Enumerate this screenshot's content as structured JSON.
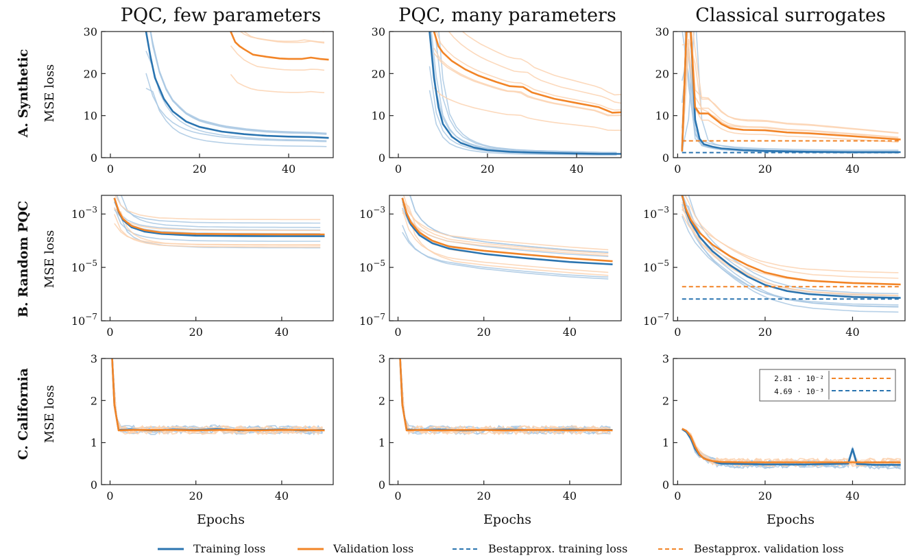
{
  "column_titles": [
    "PQC, few parameters",
    "PQC, many parameters",
    "Classical surrogates"
  ],
  "row_labels": [
    "A. Synthetic",
    "B. Random PQC",
    "C. California"
  ],
  "ylabel": "MSE loss",
  "xlabel": "Epochs",
  "legend": {
    "training": "Training loss",
    "validation": "Validation loss",
    "best_training": "Bestapprox. training loss",
    "best_validation": "Bestapprox. validation loss"
  },
  "inset_legend": {
    "val_label": "2.81 · 10⁻²",
    "train_label": "4.69 · 10⁻³"
  },
  "colors": {
    "training": "#2a74b0",
    "validation": "#f28426",
    "faint_training": "#a9c8e3",
    "faint_validation": "#fbd2b0"
  },
  "chart_data": [
    {
      "panel": "A1",
      "type": "line",
      "row": "A. Synthetic",
      "column": "PQC, few parameters",
      "ylabel": "MSE loss",
      "xlim": [
        -2,
        50
      ],
      "ylim": [
        0,
        30
      ],
      "yscale": "linear",
      "xticks": [
        0,
        20,
        40
      ],
      "yticks": [
        0,
        10,
        20,
        30
      ],
      "series": [
        {
          "name": "Training loss",
          "x": [
            8,
            9,
            10,
            12,
            14,
            17,
            20,
            25,
            30,
            35,
            40,
            45,
            49
          ],
          "y": [
            30,
            24,
            19,
            14,
            11,
            8.6,
            7.3,
            6.2,
            5.6,
            5.2,
            5.0,
            4.9,
            4.7
          ]
        },
        {
          "name": "Validation loss",
          "x": [
            27,
            28,
            29,
            30,
            32,
            35,
            38,
            40,
            43,
            45,
            47,
            49
          ],
          "y": [
            30,
            27.5,
            26.5,
            25.8,
            24.5,
            24.0,
            23.6,
            23.5,
            23.5,
            23.8,
            23.5,
            23.3
          ]
        }
      ]
    },
    {
      "panel": "A2",
      "type": "line",
      "row": "A. Synthetic",
      "column": "PQC, many parameters",
      "ylabel": "MSE loss",
      "xlim": [
        -2,
        50
      ],
      "ylim": [
        0,
        30
      ],
      "yscale": "linear",
      "xticks": [
        0,
        20,
        40
      ],
      "yticks": [
        0,
        10,
        20,
        30
      ],
      "series": [
        {
          "name": "Training loss",
          "x": [
            7,
            8,
            9,
            10,
            12,
            14,
            17,
            20,
            25,
            30,
            35,
            40,
            45,
            50
          ],
          "y": [
            30,
            19,
            12,
            8,
            5,
            3.5,
            2.4,
            1.8,
            1.4,
            1.2,
            1.1,
            1.0,
            0.9,
            0.9
          ]
        },
        {
          "name": "Validation loss",
          "x": [
            8,
            9,
            10,
            12,
            15,
            18,
            22,
            25,
            28,
            30,
            35,
            40,
            45,
            48,
            50
          ],
          "y": [
            30,
            26.5,
            25,
            23,
            21,
            19.5,
            18,
            17,
            16.8,
            15.5,
            14,
            13,
            12,
            10.7,
            10.8
          ]
        }
      ]
    },
    {
      "panel": "A3",
      "type": "line",
      "row": "A. Synthetic",
      "column": "Classical surrogates",
      "ylabel": "MSE loss",
      "xlim": [
        -1,
        52
      ],
      "ylim": [
        0,
        30
      ],
      "yscale": "linear",
      "xticks": [
        0,
        20,
        40
      ],
      "yticks": [
        0,
        10,
        20,
        30
      ],
      "series": [
        {
          "name": "Training loss",
          "x": [
            1,
            2,
            3,
            4,
            5,
            6,
            8,
            10,
            15,
            20,
            30,
            40,
            51
          ],
          "y": [
            1.5,
            30,
            30,
            9,
            4.5,
            3.2,
            2.6,
            2.2,
            1.8,
            1.6,
            1.4,
            1.3,
            1.3
          ]
        },
        {
          "name": "Validation loss",
          "x": [
            1,
            2,
            3,
            4,
            5,
            7,
            10,
            12,
            15,
            20,
            25,
            30,
            40,
            51
          ],
          "y": [
            1.5,
            30,
            30,
            12,
            10.5,
            10.5,
            8,
            7,
            6.6,
            6.5,
            6.0,
            5.8,
            5.1,
            4.3
          ]
        },
        {
          "name": "Bestapprox. training loss",
          "x": [
            1,
            51
          ],
          "y": [
            1.2,
            1.2
          ]
        },
        {
          "name": "Bestapprox. validation loss",
          "x": [
            1,
            51
          ],
          "y": [
            4.0,
            4.0
          ]
        }
      ]
    },
    {
      "panel": "B1",
      "type": "line",
      "row": "B. Random PQC",
      "column": "PQC, few parameters",
      "ylabel": "MSE loss",
      "xlim": [
        -2,
        52
      ],
      "ylim": [
        1e-07,
        0.005
      ],
      "yscale": "log",
      "xticks": [
        0,
        20,
        40
      ],
      "yticks": [
        1e-07,
        1e-05,
        0.001
      ],
      "ytick_labels": [
        "10⁻⁷",
        "10⁻⁵",
        "10⁻³"
      ],
      "series": [
        {
          "name": "Training loss",
          "x": [
            1,
            2,
            3,
            5,
            8,
            12,
            20,
            30,
            40,
            50
          ],
          "y": [
            0.004,
            0.0012,
            0.0006,
            0.00032,
            0.00022,
            0.00018,
            0.000155,
            0.00015,
            0.000148,
            0.000147
          ]
        },
        {
          "name": "Validation loss",
          "x": [
            1,
            2,
            3,
            5,
            8,
            12,
            20,
            30,
            40,
            50
          ],
          "y": [
            0.004,
            0.0013,
            0.00065,
            0.00036,
            0.00025,
            0.0002,
            0.00018,
            0.000175,
            0.000173,
            0.000172
          ]
        }
      ]
    },
    {
      "panel": "B2",
      "type": "line",
      "row": "B. Random PQC",
      "column": "PQC, many parameters",
      "ylabel": "MSE loss",
      "xlim": [
        -2,
        52
      ],
      "ylim": [
        1e-07,
        0.005
      ],
      "yscale": "log",
      "xticks": [
        0,
        20,
        40
      ],
      "yticks": [
        1e-07,
        1e-05,
        0.001
      ],
      "ytick_labels": [
        "10⁻⁷",
        "10⁻⁵",
        "10⁻³"
      ],
      "series": [
        {
          "name": "Training loss",
          "x": [
            1,
            2,
            3,
            5,
            8,
            12,
            20,
            30,
            40,
            50
          ],
          "y": [
            0.004,
            0.00095,
            0.0004,
            0.00016,
            8e-05,
            5e-05,
            3.2e-05,
            2.2e-05,
            1.6e-05,
            1.3e-05
          ]
        },
        {
          "name": "Validation loss",
          "x": [
            1,
            2,
            3,
            5,
            8,
            12,
            20,
            30,
            40,
            50
          ],
          "y": [
            0.004,
            0.0011,
            0.00048,
            0.0002,
            0.0001,
            6e-05,
            4.2e-05,
            3e-05,
            2.2e-05,
            1.7e-05
          ]
        }
      ]
    },
    {
      "panel": "B3",
      "type": "line",
      "row": "B. Random PQC",
      "column": "Classical surrogates",
      "ylabel": "MSE loss",
      "xlim": [
        -1,
        52
      ],
      "ylim": [
        1e-07,
        0.005
      ],
      "yscale": "log",
      "xticks": [
        0,
        20,
        40
      ],
      "yticks": [
        1e-07,
        1e-05,
        0.001
      ],
      "ytick_labels": [
        "10⁻⁷",
        "10⁻⁵",
        "10⁻³"
      ],
      "series": [
        {
          "name": "Training loss",
          "x": [
            1,
            2,
            3,
            5,
            8,
            12,
            16,
            20,
            25,
            30,
            40,
            51
          ],
          "y": [
            0.005,
            0.0012,
            0.0005,
            0.00014,
            4e-05,
            1.2e-05,
            4.5e-06,
            2.2e-06,
            1.3e-06,
            1e-06,
            7.8e-07,
            7.2e-07
          ]
        },
        {
          "name": "Validation loss",
          "x": [
            1,
            2,
            3,
            5,
            8,
            12,
            16,
            20,
            25,
            30,
            40,
            51
          ],
          "y": [
            0.005,
            0.0014,
            0.0006,
            0.0002,
            7e-05,
            2.6e-05,
            1.2e-05,
            6.5e-06,
            4.2e-06,
            3.2e-06,
            2.6e-06,
            2.3e-06
          ]
        },
        {
          "name": "Bestapprox. training loss",
          "x": [
            1,
            51
          ],
          "y": [
            6.5e-07,
            6.5e-07
          ]
        },
        {
          "name": "Bestapprox. validation loss",
          "x": [
            1,
            51
          ],
          "y": [
            1.9e-06,
            1.9e-06
          ]
        }
      ]
    },
    {
      "panel": "C1",
      "type": "line",
      "row": "C. California",
      "column": "PQC, few parameters",
      "ylabel": "MSE loss",
      "xlabel": "Epochs",
      "xlim": [
        -2,
        52
      ],
      "ylim": [
        0,
        3
      ],
      "yscale": "linear",
      "xticks": [
        0,
        20,
        40
      ],
      "yticks": [
        0,
        1,
        2,
        3
      ],
      "series": [
        {
          "name": "Training loss",
          "x": [
            0.5,
            1,
            2,
            5,
            10,
            15,
            20,
            25,
            30,
            35,
            40,
            45,
            50
          ],
          "y": [
            3,
            1.9,
            1.3,
            1.31,
            1.29,
            1.31,
            1.3,
            1.32,
            1.29,
            1.3,
            1.31,
            1.29,
            1.3
          ]
        },
        {
          "name": "Validation loss",
          "x": [
            0.5,
            1,
            2,
            5,
            10,
            15,
            20,
            25,
            30,
            35,
            40,
            45,
            50
          ],
          "y": [
            3,
            1.9,
            1.29,
            1.3,
            1.3,
            1.3,
            1.29,
            1.3,
            1.3,
            1.29,
            1.3,
            1.3,
            1.29
          ]
        }
      ]
    },
    {
      "panel": "C2",
      "type": "line",
      "row": "C. California",
      "column": "PQC, many parameters",
      "ylabel": "MSE loss",
      "xlabel": "Epochs",
      "xlim": [
        -2,
        52
      ],
      "ylim": [
        0,
        3
      ],
      "yscale": "linear",
      "xticks": [
        0,
        20,
        40
      ],
      "yticks": [
        0,
        1,
        2,
        3
      ],
      "series": [
        {
          "name": "Training loss",
          "x": [
            0.5,
            1,
            2,
            5,
            10,
            15,
            20,
            25,
            30,
            35,
            40,
            45,
            50
          ],
          "y": [
            3,
            1.9,
            1.31,
            1.3,
            1.31,
            1.29,
            1.3,
            1.31,
            1.3,
            1.3,
            1.31,
            1.3,
            1.3
          ]
        },
        {
          "name": "Validation loss",
          "x": [
            0.5,
            1,
            2,
            5,
            10,
            15,
            20,
            25,
            30,
            35,
            40,
            45,
            50
          ],
          "y": [
            3,
            1.9,
            1.29,
            1.3,
            1.29,
            1.3,
            1.3,
            1.29,
            1.3,
            1.3,
            1.29,
            1.3,
            1.29
          ]
        }
      ]
    },
    {
      "panel": "C3",
      "type": "line",
      "row": "C. California",
      "column": "Classical surrogates",
      "ylabel": "MSE loss",
      "xlabel": "Epochs",
      "xlim": [
        -1,
        52
      ],
      "ylim": [
        0,
        3
      ],
      "yscale": "linear",
      "xticks": [
        0,
        20,
        40
      ],
      "yticks": [
        0,
        1,
        2,
        3
      ],
      "series": [
        {
          "name": "Training loss",
          "x": [
            1,
            2,
            3,
            4,
            5,
            6,
            7,
            8,
            9,
            10,
            15,
            20,
            30,
            39,
            40,
            41,
            45,
            51
          ],
          "y": [
            1.32,
            1.25,
            1.1,
            0.85,
            0.7,
            0.63,
            0.58,
            0.56,
            0.52,
            0.5,
            0.49,
            0.48,
            0.48,
            0.5,
            0.85,
            0.49,
            0.47,
            0.47
          ]
        },
        {
          "name": "Validation loss",
          "x": [
            1,
            2,
            3,
            4,
            5,
            6,
            8,
            10,
            15,
            20,
            30,
            40,
            51
          ],
          "y": [
            1.33,
            1.28,
            1.15,
            0.9,
            0.72,
            0.62,
            0.56,
            0.54,
            0.53,
            0.53,
            0.53,
            0.53,
            0.53
          ]
        },
        {
          "name": "Bestapprox. training loss",
          "legend_value": "4.69 · 10⁻³"
        },
        {
          "name": "Bestapprox. validation loss",
          "legend_value": "2.81 · 10⁻²"
        }
      ]
    }
  ]
}
